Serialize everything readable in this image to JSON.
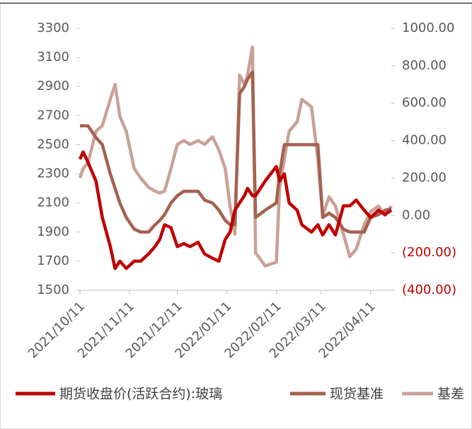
{
  "chart_data": {
    "type": "line",
    "x": [
      "2021/10/11",
      "2021/10/13",
      "2021/10/16",
      "2021/10/21",
      "2021/10/25",
      "2021/10/30",
      "2021/11/02",
      "2021/11/05",
      "2021/11/09",
      "2021/11/14",
      "2021/11/18",
      "2021/11/23",
      "2021/11/27",
      "2021/11/30",
      "2021/12/03",
      "2021/12/07",
      "2021/12/11",
      "2021/12/15",
      "2021/12/19",
      "2021/12/24",
      "2021/12/28",
      "2022/01/02",
      "2022/01/06",
      "2022/01/10",
      "2022/01/13",
      "2022/01/16",
      "2022/01/19",
      "2022/01/22",
      "2022/01/24",
      "2022/01/27",
      "2022/01/29",
      "2022/02/04",
      "2022/02/11",
      "2022/02/13",
      "2022/02/16",
      "2022/02/19",
      "2022/02/24",
      "2022/02/27",
      "2022/03/05",
      "2022/03/09",
      "2022/03/12",
      "2022/03/16",
      "2022/03/20",
      "2022/03/25",
      "2022/03/29",
      "2022/04/02",
      "2022/04/07",
      "2022/04/11",
      "2022/04/16",
      "2022/04/20",
      "2022/04/24"
    ],
    "xlim": [
      "2021/10/11",
      "2022/04/24"
    ],
    "xticks": [
      "2021/10/11",
      "2021/11/11",
      "2021/12/11",
      "2022/01/11",
      "2022/02/11",
      "2022/03/11",
      "2022/04/11"
    ],
    "ylim": [
      1500,
      3300
    ],
    "yticks": [
      1500,
      1700,
      1900,
      2100,
      2300,
      2500,
      2700,
      2900,
      3100,
      3300
    ],
    "y2lim": [
      -400,
      1000
    ],
    "y2ticks": [
      {
        "value": -400,
        "label": "(400.00)"
      },
      {
        "value": -200,
        "label": "(200.00)"
      },
      {
        "value": 0,
        "label": "0.00"
      },
      {
        "value": 200,
        "label": "200.00"
      },
      {
        "value": 400,
        "label": "400.00"
      },
      {
        "value": 600,
        "label": "600.00"
      },
      {
        "value": 800,
        "label": "800.00"
      },
      {
        "value": 1000,
        "label": "1000.00"
      }
    ],
    "y2_negative_color": "#c00000",
    "series": [
      {
        "name": "期货收盘价(活跃合约):玻璃",
        "color": "#c00000",
        "values": [
          2400,
          2450,
          2380,
          2250,
          2000,
          1800,
          1650,
          1700,
          1650,
          1700,
          1700,
          1750,
          1800,
          1850,
          1950,
          1930,
          1800,
          1820,
          1800,
          1830,
          1750,
          1720,
          1700,
          1850,
          1900,
          2050,
          2100,
          2150,
          2200,
          2150,
          2150,
          2250,
          2350,
          2250,
          2300,
          2100,
          2050,
          1950,
          1900,
          1950,
          1880,
          1950,
          1880,
          2080,
          2080,
          2120,
          2050,
          2000,
          2050,
          2020,
          2050
        ]
      },
      {
        "name": "现货基准",
        "color": "#a5624f",
        "values": [
          2630,
          2630,
          2630,
          2550,
          2500,
          2300,
          2200,
          2100,
          2000,
          1920,
          1900,
          1900,
          1950,
          1980,
          2020,
          2100,
          2150,
          2180,
          2180,
          2180,
          2120,
          2100,
          2050,
          1980,
          1950,
          1950,
          2850,
          2900,
          2950,
          3000,
          2000,
          2050,
          2100,
          2300,
          2500,
          2500,
          2500,
          2500,
          2500,
          2500,
          2000,
          2030,
          2000,
          1920,
          1900,
          1900,
          1900,
          2000,
          2020,
          2050,
          2060
        ]
      },
      {
        "name": "基差",
        "color": "#c9a197",
        "axis": "y2",
        "values": [
          200,
          250,
          280,
          450,
          480,
          620,
          700,
          530,
          450,
          250,
          200,
          150,
          130,
          120,
          130,
          250,
          380,
          400,
          380,
          400,
          380,
          420,
          350,
          250,
          50,
          -100,
          750,
          700,
          750,
          900,
          -200,
          -270,
          -250,
          150,
          300,
          450,
          500,
          620,
          580,
          300,
          0,
          100,
          50,
          -100,
          -220,
          -180,
          -50,
          20,
          50,
          0,
          50
        ]
      }
    ]
  }
}
